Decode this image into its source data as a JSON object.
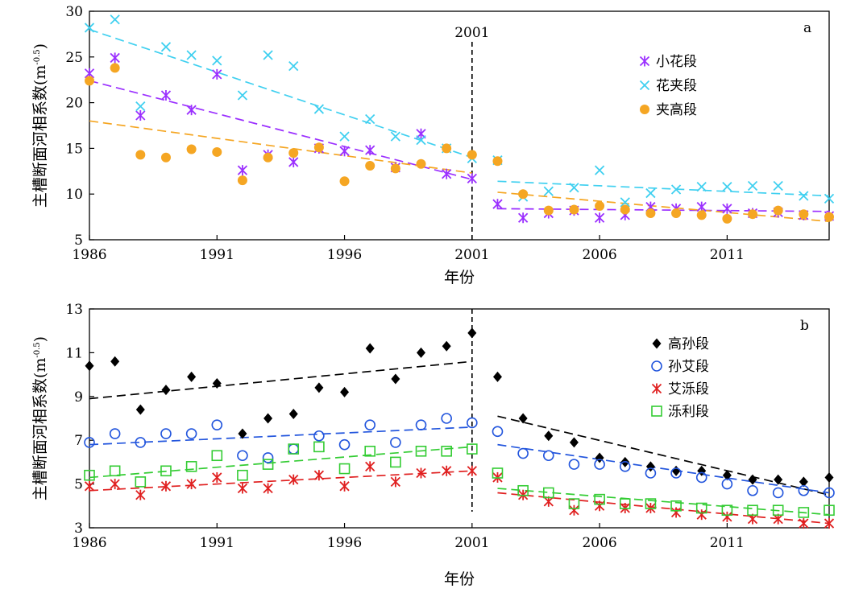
{
  "chart_data": [
    {
      "type": "scatter",
      "panel_label": "a",
      "xlabel": "年份",
      "ylabel": "主槽断面河相系数(m",
      "ylabel_superscript": "-0.5",
      "ylabel_close": ")",
      "xlim": [
        1986,
        2015
      ],
      "ylim": [
        5,
        30
      ],
      "x_ticks": [
        1986,
        1991,
        1996,
        2001,
        2006,
        2011
      ],
      "y_ticks": [
        5,
        10,
        15,
        20,
        25,
        30
      ],
      "grid": false,
      "legend_position": "top-right",
      "vline": {
        "x": 2001,
        "label": "2001"
      },
      "series": [
        {
          "name": "小花段",
          "marker": "asterisk",
          "color": "#9B30FF",
          "x": [
            1986,
            1987,
            1988,
            1989,
            1990,
            1991,
            1992,
            1993,
            1994,
            1995,
            1996,
            1997,
            1998,
            1999,
            2000,
            2001,
            2002,
            2003,
            2004,
            2005,
            2006,
            2007,
            2008,
            2009,
            2010,
            2011,
            2012,
            2013,
            2014,
            2015
          ],
          "y": [
            23.2,
            24.9,
            18.6,
            20.8,
            19.2,
            23.1,
            12.6,
            14.3,
            13.5,
            15.0,
            14.7,
            14.8,
            12.9,
            16.6,
            12.2,
            11.7,
            8.9,
            7.4,
            7.9,
            8.2,
            7.4,
            7.7,
            8.6,
            8.4,
            8.6,
            8.4,
            7.9,
            8.0,
            7.7,
            7.6
          ],
          "trend": [
            [
              1986,
              22.4
            ],
            [
              2001,
              11.6
            ],
            [
              2002,
              8.4
            ],
            [
              2015,
              8.1
            ]
          ]
        },
        {
          "name": "花夹段",
          "marker": "x",
          "color": "#40D0F0",
          "x": [
            1986,
            1987,
            1988,
            1989,
            1990,
            1991,
            1992,
            1993,
            1994,
            1995,
            1996,
            1997,
            1998,
            1999,
            2000,
            2001,
            2002,
            2003,
            2004,
            2005,
            2006,
            2007,
            2008,
            2009,
            2010,
            2011,
            2012,
            2013,
            2014,
            2015
          ],
          "y": [
            28.2,
            29.1,
            19.6,
            26.1,
            25.2,
            24.6,
            20.8,
            25.2,
            24.0,
            19.3,
            16.3,
            18.2,
            16.3,
            15.9,
            15.0,
            13.9,
            13.7,
            9.7,
            10.3,
            10.7,
            12.6,
            9.1,
            10.1,
            10.5,
            10.8,
            10.8,
            10.9,
            10.9,
            9.8,
            9.5
          ],
          "trend": [
            [
              1986,
              28.0
            ],
            [
              2001,
              14.0
            ],
            [
              2002,
              11.4
            ],
            [
              2015,
              9.8
            ]
          ]
        },
        {
          "name": "夹高段",
          "marker": "dot",
          "color": "#F5A623",
          "x": [
            1986,
            1987,
            1988,
            1989,
            1990,
            1991,
            1992,
            1993,
            1994,
            1995,
            1996,
            1997,
            1998,
            1999,
            2000,
            2001,
            2002,
            2003,
            2004,
            2005,
            2006,
            2007,
            2008,
            2009,
            2010,
            2011,
            2012,
            2013,
            2014,
            2015
          ],
          "y": [
            22.4,
            23.8,
            14.3,
            14.0,
            14.9,
            14.6,
            11.5,
            14.0,
            14.5,
            15.1,
            11.4,
            13.1,
            12.8,
            13.3,
            15.0,
            14.3,
            13.6,
            10.0,
            8.2,
            8.3,
            8.7,
            8.3,
            7.9,
            7.9,
            7.7,
            7.3,
            7.8,
            8.2,
            7.8,
            7.5
          ],
          "trend": [
            [
              1986,
              18.0
            ],
            [
              2001,
              12.3
            ],
            [
              2002,
              10.2
            ],
            [
              2015,
              7.0
            ]
          ]
        }
      ]
    },
    {
      "type": "scatter",
      "panel_label": "b",
      "xlabel": "年份",
      "ylabel": "主槽断面河相系数(m",
      "ylabel_superscript": "-0.5",
      "ylabel_close": ")",
      "xlim": [
        1986,
        2015
      ],
      "ylim": [
        3,
        13
      ],
      "x_ticks": [
        1986,
        1991,
        1996,
        2001,
        2006,
        2011
      ],
      "y_ticks": [
        3,
        5,
        7,
        9,
        11,
        13
      ],
      "grid": false,
      "legend_position": "top-right",
      "vline": {
        "x": 2001,
        "label": ""
      },
      "series": [
        {
          "name": "高孙段",
          "marker": "diamond",
          "color": "#000000",
          "x": [
            1986,
            1987,
            1988,
            1989,
            1990,
            1991,
            1992,
            1993,
            1994,
            1995,
            1996,
            1997,
            1998,
            1999,
            2000,
            2001,
            2002,
            2003,
            2004,
            2005,
            2006,
            2007,
            2008,
            2009,
            2010,
            2011,
            2012,
            2013,
            2014,
            2015
          ],
          "y": [
            10.4,
            10.6,
            8.4,
            9.3,
            9.9,
            9.6,
            7.3,
            8.0,
            8.2,
            9.4,
            9.2,
            11.2,
            9.8,
            11.0,
            11.3,
            11.9,
            9.9,
            8.0,
            7.2,
            6.9,
            6.2,
            6.0,
            5.8,
            5.6,
            5.6,
            5.4,
            5.2,
            5.2,
            5.1,
            5.3
          ],
          "trend": [
            [
              1986,
              8.9
            ],
            [
              2001,
              10.6
            ],
            [
              2002,
              8.1
            ],
            [
              2015,
              4.5
            ]
          ]
        },
        {
          "name": "孙艾段",
          "marker": "circle",
          "color": "#2255DD",
          "x": [
            1986,
            1987,
            1988,
            1989,
            1990,
            1991,
            1992,
            1993,
            1994,
            1995,
            1996,
            1997,
            1998,
            1999,
            2000,
            2001,
            2002,
            2003,
            2004,
            2005,
            2006,
            2007,
            2008,
            2009,
            2010,
            2011,
            2012,
            2013,
            2014,
            2015
          ],
          "y": [
            6.9,
            7.3,
            6.9,
            7.3,
            7.3,
            7.7,
            6.3,
            6.2,
            6.6,
            7.2,
            6.8,
            7.7,
            6.9,
            7.7,
            8.0,
            7.8,
            7.4,
            6.4,
            6.3,
            5.9,
            5.9,
            5.8,
            5.5,
            5.5,
            5.3,
            5.0,
            4.7,
            4.6,
            4.7,
            4.6
          ],
          "trend": [
            [
              1986,
              6.8
            ],
            [
              2001,
              7.6
            ],
            [
              2002,
              6.8
            ],
            [
              2015,
              4.6
            ]
          ]
        },
        {
          "name": "艾泺段",
          "marker": "asterisk",
          "color": "#E02020",
          "x": [
            1986,
            1987,
            1988,
            1989,
            1990,
            1991,
            1992,
            1993,
            1994,
            1995,
            1996,
            1997,
            1998,
            1999,
            2000,
            2001,
            2002,
            2003,
            2004,
            2005,
            2006,
            2007,
            2008,
            2009,
            2010,
            2011,
            2012,
            2013,
            2014,
            2015
          ],
          "y": [
            4.9,
            5.0,
            4.5,
            4.9,
            5.0,
            5.3,
            4.8,
            4.8,
            5.2,
            5.4,
            4.9,
            5.8,
            5.1,
            5.5,
            5.6,
            5.6,
            5.3,
            4.5,
            4.2,
            3.8,
            4.0,
            3.9,
            3.9,
            3.7,
            3.6,
            3.5,
            3.4,
            3.4,
            3.2,
            3.2
          ],
          "trend": [
            [
              1986,
              4.7
            ],
            [
              2001,
              5.6
            ],
            [
              2002,
              4.6
            ],
            [
              2015,
              3.2
            ]
          ]
        },
        {
          "name": "泺利段",
          "marker": "square",
          "color": "#33CC33",
          "x": [
            1986,
            1987,
            1988,
            1989,
            1990,
            1991,
            1992,
            1993,
            1994,
            1995,
            1996,
            1997,
            1998,
            1999,
            2000,
            2001,
            2002,
            2003,
            2004,
            2005,
            2006,
            2007,
            2008,
            2009,
            2010,
            2011,
            2012,
            2013,
            2014,
            2015
          ],
          "y": [
            5.4,
            5.6,
            5.1,
            5.6,
            5.8,
            6.3,
            5.4,
            5.9,
            6.6,
            6.7,
            5.7,
            6.5,
            6.0,
            6.5,
            6.5,
            6.6,
            5.5,
            4.7,
            4.6,
            4.1,
            4.3,
            4.1,
            4.1,
            4.0,
            3.9,
            3.8,
            3.8,
            3.8,
            3.7,
            3.8
          ],
          "trend": [
            [
              1986,
              5.3
            ],
            [
              2001,
              6.7
            ],
            [
              2002,
              4.8
            ],
            [
              2015,
              3.6
            ]
          ]
        }
      ]
    }
  ]
}
